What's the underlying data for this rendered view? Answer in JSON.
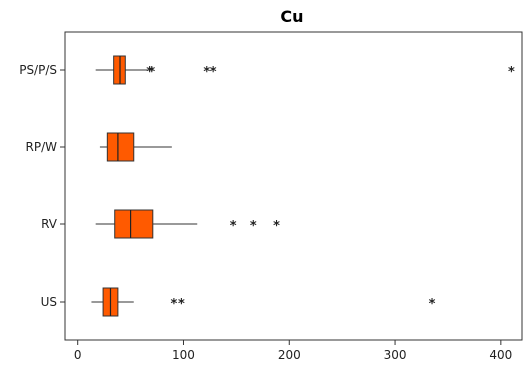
{
  "chart_data": {
    "type": "boxplot",
    "title": "Cu",
    "orientation": "horizontal",
    "xlim": [
      -12,
      420
    ],
    "xticks": [
      0,
      100,
      200,
      300,
      400
    ],
    "xlabel": "",
    "ylabel": "",
    "grid": false,
    "box_color": "#ff5a00",
    "categories": [
      "PS/P/S",
      "RP/W",
      "RV",
      "US"
    ],
    "series": [
      {
        "category": "PS/P/S",
        "whisker_low": 17,
        "q1": 34,
        "median": 40,
        "q3": 45,
        "whisker_high": 66,
        "outliers": [
          68,
          70,
          122,
          128,
          410
        ]
      },
      {
        "category": "RP/W",
        "whisker_low": 21,
        "q1": 28,
        "median": 38,
        "q3": 53,
        "whisker_high": 89,
        "outliers": []
      },
      {
        "category": "RV",
        "whisker_low": 17,
        "q1": 35,
        "median": 50,
        "q3": 71,
        "whisker_high": 113,
        "outliers": [
          147,
          166,
          188
        ]
      },
      {
        "category": "US",
        "whisker_low": 13,
        "q1": 24,
        "median": 31,
        "q3": 38,
        "whisker_high": 53,
        "outliers": [
          91,
          98,
          335
        ]
      }
    ]
  }
}
